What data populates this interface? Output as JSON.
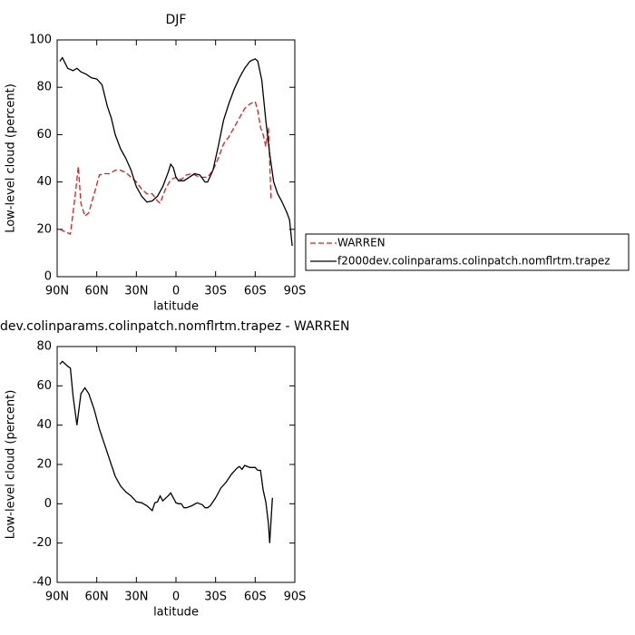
{
  "chart_data": [
    {
      "type": "line",
      "title": "DJF",
      "xlabel": "latitude",
      "ylabel": "Low-level cloud (percent)",
      "xlim": [
        90,
        -90
      ],
      "ylim": [
        0,
        100
      ],
      "xticks": [
        {
          "value": 90,
          "label": "90N"
        },
        {
          "value": 60,
          "label": "60N"
        },
        {
          "value": 30,
          "label": "30N"
        },
        0,
        {
          "value": -30,
          "label": "30S"
        },
        {
          "value": -60,
          "label": "60S"
        },
        {
          "value": -90,
          "label": "90S"
        }
      ],
      "yticks": [
        0,
        20,
        40,
        60,
        80,
        100
      ],
      "series": [
        {
          "name": "WARREN",
          "color": "#e41a1c",
          "style": "dashed",
          "x": [
            88,
            84,
            80,
            76,
            74,
            72,
            69,
            66,
            62,
            58,
            54,
            50,
            46,
            42,
            38,
            34,
            30,
            26,
            22,
            18,
            14,
            12,
            8,
            4,
            0,
            -4,
            -8,
            -12,
            -16,
            -20,
            -24,
            -28,
            -32,
            -36,
            -40,
            -44,
            -48,
            -52,
            -56,
            -60,
            -62,
            -64,
            -66,
            -68,
            -70,
            -72
          ],
          "values": [
            20,
            19,
            18,
            36,
            46.5,
            31,
            25.5,
            27,
            35,
            43,
            43.5,
            43.5,
            45,
            45,
            44,
            42,
            40,
            37,
            35,
            35,
            32,
            31,
            37,
            41,
            42,
            41,
            43,
            43.5,
            42.5,
            42,
            42,
            45,
            50,
            56,
            59,
            63,
            67,
            71,
            73,
            74,
            70,
            63,
            60,
            55,
            63,
            33
          ]
        },
        {
          "name": "f2000dev.colinparams.colinpatch.nomflrtm.trapez",
          "color": "#000000",
          "style": "solid",
          "x": [
            88,
            86,
            82,
            78,
            75,
            72,
            68,
            64,
            60,
            56,
            52,
            49,
            46,
            42,
            38,
            34,
            30,
            26,
            22,
            18,
            14,
            10,
            6,
            4,
            2,
            0,
            -2,
            -6,
            -10,
            -14,
            -18,
            -22,
            -24,
            -28,
            -32,
            -36,
            -40,
            -44,
            -48,
            -52,
            -56,
            -60,
            -62,
            -65,
            -68,
            -71,
            -74,
            -77,
            -80,
            -84,
            -86,
            -88
          ],
          "values": [
            91,
            92.5,
            88,
            87,
            88,
            86.5,
            85.5,
            84,
            83.5,
            81,
            72,
            67,
            60,
            54,
            50,
            45,
            38,
            34,
            31.5,
            32,
            34,
            38,
            44,
            47.5,
            46,
            42,
            40.5,
            40.5,
            42,
            43.5,
            43,
            40,
            40,
            45,
            55,
            66,
            73,
            79,
            84,
            88,
            91,
            92,
            91,
            83,
            66,
            52,
            40,
            35,
            32,
            27,
            24,
            13
          ]
        }
      ]
    },
    {
      "type": "line",
      "title": "dev.colinparams.colinpatch.nomflrtm.trapez - WARREN",
      "xlabel": "latitude",
      "ylabel": "Low-level cloud (percent)",
      "xlim": [
        90,
        -90
      ],
      "ylim": [
        -40,
        80
      ],
      "xticks": [
        {
          "value": 90,
          "label": "90N"
        },
        {
          "value": 60,
          "label": "60N"
        },
        {
          "value": 30,
          "label": "30N"
        },
        0,
        {
          "value": -30,
          "label": "30S"
        },
        {
          "value": -60,
          "label": "60S"
        },
        {
          "value": -90,
          "label": "90S"
        }
      ],
      "yticks": [
        -40,
        -20,
        0,
        20,
        40,
        60,
        80
      ],
      "series": [
        {
          "color": "#000000",
          "style": "solid",
          "x": [
            88,
            86,
            82,
            80,
            78,
            75,
            72,
            69,
            66,
            62,
            58,
            54,
            50,
            46,
            42,
            38,
            34,
            30,
            26,
            22,
            18,
            16,
            14,
            12,
            10,
            6,
            4,
            2,
            0,
            -2,
            -4,
            -6,
            -8,
            -12,
            -16,
            -20,
            -22,
            -24,
            -26,
            -30,
            -34,
            -38,
            -42,
            -46,
            -48,
            -50,
            -52,
            -56,
            -60,
            -62,
            -64,
            -66,
            -68,
            -70,
            -71,
            -73
          ],
          "values": [
            71,
            72.5,
            70,
            69,
            55,
            40,
            56,
            59,
            56,
            48,
            38,
            30,
            22,
            14,
            9,
            6,
            4,
            1,
            0.5,
            -1,
            -3.5,
            0.5,
            1,
            4,
            1.5,
            4,
            5.5,
            3,
            0.5,
            0,
            0,
            -2,
            -2,
            -1,
            0.5,
            -0.5,
            -2,
            -2,
            -1,
            3,
            8,
            11,
            15,
            18,
            19,
            17.5,
            19.5,
            18.5,
            18.5,
            17,
            17,
            7,
            1,
            -10,
            -20,
            3
          ]
        }
      ]
    }
  ]
}
